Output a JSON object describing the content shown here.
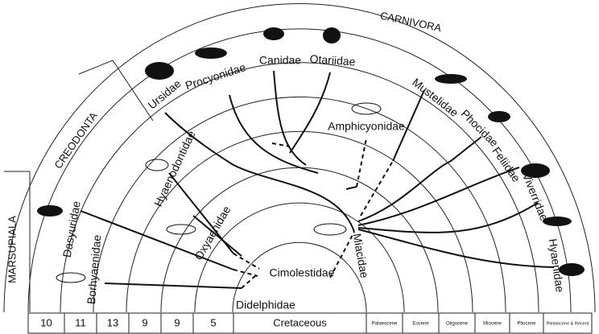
{
  "groups": [
    "MARSUPIALA",
    "CREODONTA",
    "CARNIVORA"
  ],
  "families": [
    "Ursidae",
    "Procyonidae",
    "Canidae",
    "Otariidae",
    "Mustelidae",
    "Phocidae",
    "Feliidae",
    "Viverridae",
    "Hyaenidae",
    "Amphicyonidae",
    "Hyaenodontidae",
    "Oxyaenidae",
    "Miacidae",
    "Cimolestidae",
    "Didelphidae",
    "Dasyuridae",
    "Borhyaenidae"
  ],
  "time_scale": [
    "10",
    "11",
    "13",
    "9",
    "9",
    "5",
    "Cretaceous",
    "Palaeocene",
    "Eocene",
    "Oligocene",
    "Miocene",
    "Pliocene",
    "Pleistocene & Recent"
  ]
}
